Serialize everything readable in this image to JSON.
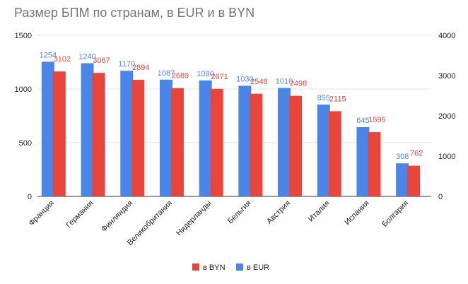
{
  "title": "Размер БПМ по странам, в EUR и в BYN",
  "chart_data": {
    "type": "bar",
    "title": "Размер БПМ по странам, в EUR и в BYN",
    "categories": [
      "Франция",
      "Германия",
      "Финляндия",
      "Великобритания",
      "Нидерланды",
      "Бельгия",
      "Австрия",
      "Италия",
      "Испания",
      "Болгария"
    ],
    "series": [
      {
        "name": "в EUR",
        "axis": "left",
        "color": "#4a86e8",
        "label_color": "#4a86e8",
        "values": [
          1254,
          1240,
          1170,
          1087,
          1080,
          1030,
          1010,
          855,
          645,
          308
        ]
      },
      {
        "name": "в BYN",
        "axis": "right",
        "color": "#e8453c",
        "label_color": "#e8453c",
        "values": [
          3102,
          3067,
          2894,
          2689,
          2671,
          2548,
          2498,
          2115,
          1595,
          762
        ]
      }
    ],
    "y_left": {
      "min": 0,
      "max": 1500,
      "ticks": [
        "0",
        "500",
        "1000",
        "1500"
      ]
    },
    "y_right": {
      "min": 0,
      "max": 4000,
      "ticks": [
        "0",
        "1000",
        "2000",
        "3000",
        "4000"
      ]
    },
    "gridlines": true,
    "legend": {
      "position": "bottom",
      "order": [
        "в BYN",
        "в EUR"
      ]
    },
    "xlabel": "",
    "ylabel": ""
  }
}
